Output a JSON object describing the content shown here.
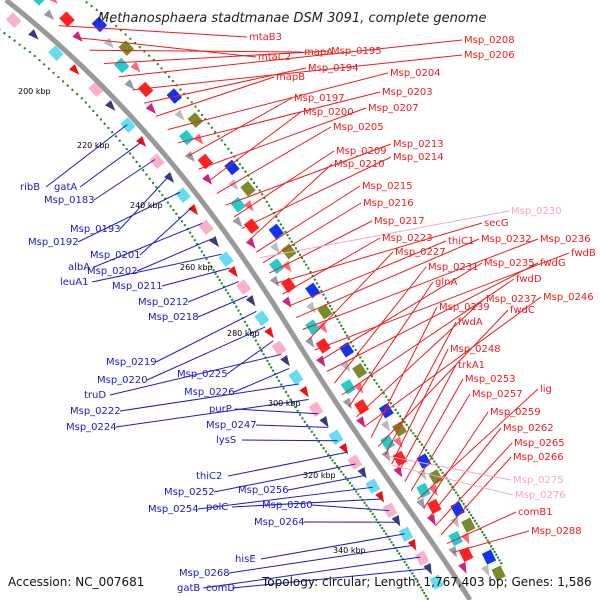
{
  "title": "Methanosphaera stadtmanae DSM 3091, complete genome",
  "footer": {
    "accession": "Accession: NC_007681",
    "summary": "Topology: circular; Length: 1,767,403 bp; Genes: 1,586"
  },
  "colors": {
    "backbone": "#999999",
    "forward_label": "#ee1c1c",
    "reverse_label": "#1a1acc",
    "pseudo_label": "#f4a6c8",
    "dots": "#2a8a2a"
  },
  "kbp_ticks": [
    "200 kbp",
    "220 kbp",
    "240 kbp",
    "260 kbp",
    "280 kbp",
    "300 kbp",
    "320 kbp",
    "340 kbp"
  ],
  "red_labels": [
    "mtaB3",
    "mtaC2",
    "mapA",
    "Msp_0195",
    "Msp_0208",
    "Msp_0206",
    "Msp_0194",
    "mapB",
    "Msp_0204",
    "Msp_0203",
    "Msp_0197",
    "Msp_0207",
    "Msp_0200",
    "Msp_0205",
    "Msp_0213",
    "Msp_0209",
    "Msp_0214",
    "Msp_0210",
    "Msp_0215",
    "Msp_0216",
    "Msp_0217",
    "secG",
    "Msp_0223",
    "thiC1",
    "Msp_0232",
    "Msp_0236",
    "Msp_0227",
    "fwdB",
    "Msp_0235",
    "fwdG",
    "Msp_0231",
    "fwdD",
    "glnA",
    "Msp_0237",
    "Msp_0246",
    "Msp_0239",
    "fwdC",
    "fwdA",
    "Msp_0248",
    "trkA1",
    "Msp_0253",
    "Msp_0257",
    "lig",
    "Msp_0259",
    "Msp_0262",
    "Msp_0265",
    "Msp_0266",
    "comB1",
    "Msp_0288"
  ],
  "pink_labels": [
    "Msp_0230",
    "Msp_0275",
    "Msp_0276"
  ],
  "blue_labels": [
    "ribB",
    "gatA",
    "Msp_0183",
    "Msp_0193",
    "Msp_0192",
    "Msp_0201",
    "albA",
    "Msp_0202",
    "leuA1",
    "Msp_0211",
    "Msp_0212",
    "Msp_0218",
    "Msp_0219",
    "Msp_0220",
    "Msp_0225",
    "truD",
    "Msp_0226",
    "Msp_0222",
    "Msp_0224",
    "purP",
    "Msp_0247",
    "lysS",
    "thiC2",
    "Msp_0252",
    "Msp_0256",
    "Msp_0254",
    "polC",
    "Msp_0260",
    "Msp_0264",
    "hisE",
    "Msp_0268",
    "gatB",
    "comD"
  ]
}
